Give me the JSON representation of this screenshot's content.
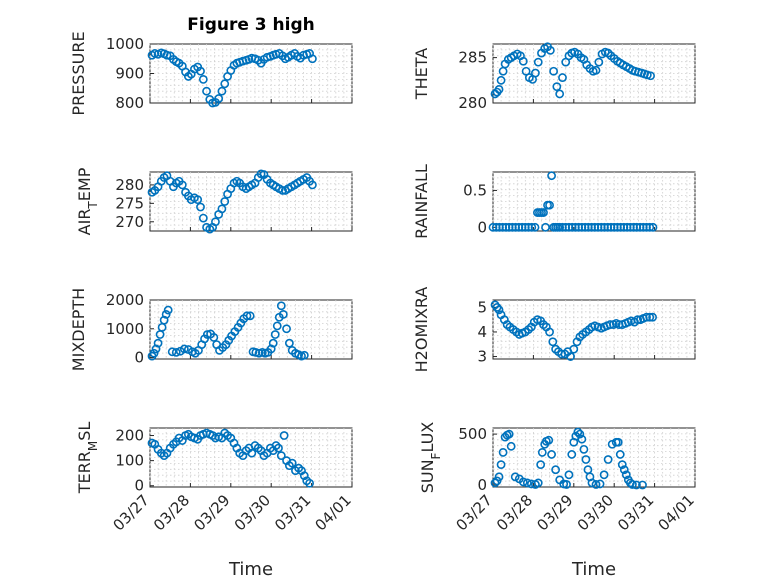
{
  "figure_title": "Figure 3 high",
  "xlabel": "Time",
  "x_tick_labels": [
    "03/27",
    "03/28",
    "03/29",
    "03/30",
    "03/31",
    "04/01"
  ],
  "colors": {
    "marker": "#0072BD",
    "axes": "#262626",
    "grid": "#cfcfcf"
  },
  "chart_data": [
    {
      "type": "scatter",
      "name": "PRESSURE",
      "ylabel": "PRESSURE",
      "ylabel_sub": "",
      "ylim": [
        800,
        1000
      ],
      "yticks": [
        800,
        900,
        1000
      ],
      "grid": true,
      "x_range": [
        "03/27",
        "04/01"
      ],
      "x": [
        0.05,
        0.12,
        0.2,
        0.28,
        0.35,
        0.42,
        0.5,
        0.58,
        0.65,
        0.72,
        0.8,
        0.88,
        0.95,
        1.02,
        1.1,
        1.18,
        1.25,
        1.32,
        1.4,
        1.48,
        1.55,
        1.62,
        1.7,
        1.78,
        1.85,
        1.92,
        2.0,
        2.08,
        2.15,
        2.22,
        2.3,
        2.38,
        2.45,
        2.52,
        2.6,
        2.68,
        2.75,
        2.82,
        2.9,
        2.98,
        3.05,
        3.12,
        3.2,
        3.28,
        3.35,
        3.42,
        3.5,
        3.58,
        3.65,
        3.72,
        3.8,
        3.88,
        3.95,
        4.02
      ],
      "y": [
        962,
        968,
        965,
        970,
        967,
        962,
        960,
        948,
        940,
        935,
        925,
        905,
        890,
        898,
        915,
        922,
        908,
        880,
        840,
        812,
        800,
        802,
        815,
        840,
        865,
        890,
        910,
        928,
        935,
        938,
        942,
        945,
        948,
        952,
        950,
        945,
        935,
        948,
        955,
        958,
        962,
        965,
        968,
        960,
        950,
        955,
        962,
        968,
        958,
        952,
        962,
        965,
        968,
        950
      ]
    },
    {
      "type": "scatter",
      "name": "THETA",
      "ylabel": "THETA",
      "ylabel_sub": "",
      "ylim": [
        280,
        286.5
      ],
      "yticks": [
        280,
        285
      ],
      "grid": true,
      "x_range": [
        "03/27",
        "04/01"
      ],
      "x": [
        0.05,
        0.1,
        0.15,
        0.2,
        0.25,
        0.3,
        0.38,
        0.45,
        0.52,
        0.6,
        0.68,
        0.75,
        0.82,
        0.9,
        0.98,
        1.05,
        1.12,
        1.2,
        1.28,
        1.35,
        1.42,
        1.5,
        1.58,
        1.65,
        1.72,
        1.8,
        1.88,
        1.95,
        2.02,
        2.1,
        2.18,
        2.25,
        2.32,
        2.4,
        2.48,
        2.55,
        2.62,
        2.7,
        2.78,
        2.85,
        2.92,
        3.0,
        3.08,
        3.15,
        3.22,
        3.3,
        3.38,
        3.45,
        3.52,
        3.6,
        3.68,
        3.75,
        3.82,
        3.9
      ],
      "y": [
        281.0,
        281.2,
        281.5,
        282.5,
        283.5,
        284.3,
        284.8,
        285.0,
        285.2,
        285.4,
        285.2,
        284.6,
        283.5,
        282.8,
        282.6,
        283.3,
        284.5,
        285.5,
        286.0,
        286.2,
        285.8,
        283.5,
        281.8,
        281.0,
        282.8,
        284.5,
        285.2,
        285.5,
        285.6,
        285.4,
        285.0,
        284.8,
        284.2,
        283.8,
        283.5,
        283.6,
        284.5,
        285.4,
        285.6,
        285.5,
        285.2,
        284.9,
        284.6,
        284.4,
        284.2,
        284.0,
        283.8,
        283.6,
        283.5,
        283.4,
        283.3,
        283.2,
        283.1,
        283.0
      ]
    },
    {
      "type": "scatter",
      "name": "AIR_TEMP",
      "ylabel": "AIR",
      "ylabel_sub": "T",
      "ylabel_suffix": "EMP",
      "ylim": [
        267.5,
        283.5
      ],
      "yticks": [
        270,
        275,
        280
      ],
      "grid": true,
      "x_range": [
        "03/27",
        "04/01"
      ],
      "x": [
        0.05,
        0.12,
        0.2,
        0.28,
        0.35,
        0.42,
        0.5,
        0.58,
        0.65,
        0.72,
        0.8,
        0.88,
        0.95,
        1.02,
        1.1,
        1.18,
        1.25,
        1.32,
        1.4,
        1.48,
        1.55,
        1.62,
        1.7,
        1.78,
        1.85,
        1.92,
        2.0,
        2.08,
        2.15,
        2.22,
        2.3,
        2.38,
        2.45,
        2.52,
        2.6,
        2.68,
        2.75,
        2.82,
        2.9,
        2.98,
        3.05,
        3.12,
        3.2,
        3.28,
        3.35,
        3.42,
        3.5,
        3.58,
        3.65,
        3.72,
        3.8,
        3.88,
        3.95,
        4.02
      ],
      "y": [
        278,
        278.5,
        279.5,
        281,
        282,
        282.5,
        281,
        279.5,
        280.5,
        281,
        280,
        278,
        277,
        276,
        276.5,
        276,
        274,
        271,
        268.5,
        268,
        268.5,
        270,
        272,
        273.5,
        275.5,
        277.5,
        279,
        280.5,
        281,
        280.5,
        279.5,
        279,
        279.5,
        280,
        280.5,
        282,
        283,
        282.8,
        281.5,
        280.5,
        280,
        279.5,
        279,
        278.5,
        278.5,
        279,
        279.5,
        280,
        280.5,
        281,
        281.5,
        282,
        281,
        280
      ]
    },
    {
      "type": "scatter",
      "name": "RAINFALL",
      "ylabel": "RAINFALL",
      "ylabel_sub": "",
      "ylim": [
        -0.05,
        0.75
      ],
      "yticks": [
        0,
        0.5
      ],
      "grid": true,
      "x_range": [
        "03/27",
        "04/01"
      ],
      "x": [
        0.0,
        0.08,
        0.16,
        0.24,
        0.32,
        0.4,
        0.48,
        0.56,
        0.64,
        0.72,
        0.8,
        0.88,
        0.96,
        1.04,
        1.1,
        1.15,
        1.2,
        1.25,
        1.3,
        1.35,
        1.4,
        1.45,
        1.5,
        1.55,
        1.6,
        1.65,
        1.72,
        1.8,
        1.88,
        1.96,
        2.04,
        2.12,
        2.2,
        2.28,
        2.36,
        2.44,
        2.52,
        2.6,
        2.68,
        2.76,
        2.84,
        2.92,
        3.0,
        3.08,
        3.16,
        3.24,
        3.32,
        3.4,
        3.48,
        3.56,
        3.64,
        3.72,
        3.8,
        3.88,
        3.96
      ],
      "y": [
        0,
        0,
        0,
        0,
        0,
        0,
        0,
        0,
        0,
        0,
        0,
        0,
        0,
        0,
        0.2,
        0.2,
        0.2,
        0.2,
        0,
        0.3,
        0.3,
        0.7,
        0,
        0,
        0,
        0,
        0,
        0,
        0,
        0,
        0,
        0,
        0,
        0,
        0,
        0,
        0,
        0,
        0,
        0,
        0,
        0,
        0,
        0,
        0,
        0,
        0,
        0,
        0,
        0,
        0,
        0,
        0,
        0,
        0
      ]
    },
    {
      "type": "scatter",
      "name": "MIXDEPTH",
      "ylabel": "MIXDEPTH",
      "ylabel_sub": "",
      "ylim": [
        -50,
        2000
      ],
      "yticks": [
        0,
        1000,
        2000
      ],
      "grid": true,
      "x_range": [
        "03/27",
        "04/01"
      ],
      "x": [
        0.05,
        0.1,
        0.15,
        0.2,
        0.25,
        0.3,
        0.35,
        0.4,
        0.45,
        0.55,
        0.65,
        0.75,
        0.85,
        0.95,
        1.05,
        1.12,
        1.2,
        1.28,
        1.35,
        1.42,
        1.5,
        1.58,
        1.65,
        1.72,
        1.8,
        1.88,
        1.95,
        2.02,
        2.1,
        2.18,
        2.25,
        2.32,
        2.4,
        2.48,
        2.55,
        2.62,
        2.7,
        2.78,
        2.85,
        2.92,
        3.0,
        3.05,
        3.1,
        3.15,
        3.2,
        3.25,
        3.3,
        3.38,
        3.45,
        3.52,
        3.6,
        3.68,
        3.75,
        3.82
      ],
      "y": [
        50,
        150,
        300,
        500,
        800,
        1050,
        1300,
        1500,
        1650,
        200,
        180,
        220,
        300,
        280,
        200,
        150,
        250,
        450,
        650,
        800,
        820,
        700,
        450,
        250,
        350,
        450,
        600,
        750,
        900,
        1050,
        1200,
        1350,
        1450,
        1450,
        200,
        180,
        150,
        180,
        150,
        180,
        300,
        500,
        800,
        1100,
        1400,
        1800,
        1500,
        1000,
        500,
        250,
        150,
        100,
        50,
        80
      ]
    },
    {
      "type": "scatter",
      "name": "H2OMIXRA",
      "ylabel": "H2OMIXRA",
      "ylabel_sub": "",
      "ylim": [
        2.9,
        5.3
      ],
      "yticks": [
        3,
        4,
        5
      ],
      "grid": true,
      "x_range": [
        "03/27",
        "04/01"
      ],
      "x": [
        0.05,
        0.1,
        0.15,
        0.2,
        0.28,
        0.35,
        0.42,
        0.5,
        0.58,
        0.65,
        0.72,
        0.8,
        0.88,
        0.95,
        1.02,
        1.1,
        1.18,
        1.25,
        1.32,
        1.4,
        1.48,
        1.55,
        1.62,
        1.7,
        1.78,
        1.85,
        1.92,
        2.0,
        2.08,
        2.15,
        2.22,
        2.3,
        2.38,
        2.45,
        2.52,
        2.6,
        2.68,
        2.75,
        2.82,
        2.9,
        2.98,
        3.05,
        3.12,
        3.2,
        3.28,
        3.35,
        3.42,
        3.5,
        3.58,
        3.65,
        3.72,
        3.8,
        3.88,
        3.95
      ],
      "y": [
        5.1,
        5.0,
        4.9,
        4.7,
        4.5,
        4.3,
        4.2,
        4.1,
        4.0,
        3.9,
        3.95,
        4.0,
        4.1,
        4.2,
        4.4,
        4.5,
        4.45,
        4.3,
        4.2,
        4.0,
        3.6,
        3.3,
        3.2,
        3.1,
        3.1,
        3.2,
        3.0,
        3.3,
        3.6,
        3.8,
        3.9,
        4.0,
        4.1,
        4.2,
        4.25,
        4.2,
        4.15,
        4.2,
        4.25,
        4.3,
        4.3,
        4.35,
        4.3,
        4.3,
        4.35,
        4.4,
        4.45,
        4.4,
        4.5,
        4.5,
        4.55,
        4.6,
        4.6,
        4.6
      ]
    },
    {
      "type": "scatter",
      "name": "TERR_MSL",
      "ylabel": "TERR",
      "ylabel_sub": "M",
      "ylabel_suffix": "SL",
      "ylim": [
        -5,
        230
      ],
      "yticks": [
        0,
        100,
        200
      ],
      "grid": true,
      "x_range": [
        "03/27",
        "04/01"
      ],
      "x": [
        0.05,
        0.12,
        0.2,
        0.28,
        0.35,
        0.42,
        0.5,
        0.58,
        0.65,
        0.72,
        0.8,
        0.88,
        0.95,
        1.02,
        1.1,
        1.18,
        1.25,
        1.32,
        1.4,
        1.48,
        1.55,
        1.62,
        1.7,
        1.78,
        1.85,
        1.92,
        2.0,
        2.08,
        2.15,
        2.22,
        2.3,
        2.38,
        2.45,
        2.52,
        2.6,
        2.68,
        2.75,
        2.82,
        2.9,
        2.98,
        3.05,
        3.12,
        3.18,
        3.25,
        3.32,
        3.38,
        3.45,
        3.52,
        3.6,
        3.68,
        3.75,
        3.82,
        3.88,
        3.95
      ],
      "y": [
        170,
        165,
        145,
        130,
        120,
        130,
        150,
        165,
        175,
        190,
        180,
        200,
        205,
        195,
        190,
        185,
        200,
        205,
        210,
        205,
        200,
        190,
        195,
        190,
        210,
        200,
        190,
        170,
        150,
        130,
        120,
        140,
        150,
        130,
        160,
        150,
        140,
        120,
        130,
        150,
        140,
        160,
        150,
        120,
        200,
        100,
        80,
        90,
        60,
        70,
        60,
        40,
        20,
        10
      ]
    },
    {
      "type": "scatter",
      "name": "SUN_FLUX",
      "ylabel": "SUN",
      "ylabel_sub": "F",
      "ylabel_suffix": "LUX",
      "ylim": [
        -20,
        560
      ],
      "yticks": [
        0,
        500
      ],
      "grid": true,
      "x_range": [
        "03/27",
        "04/01"
      ],
      "x": [
        0.05,
        0.1,
        0.15,
        0.2,
        0.25,
        0.3,
        0.35,
        0.4,
        0.45,
        0.55,
        0.65,
        0.75,
        0.85,
        0.95,
        1.05,
        1.12,
        1.18,
        1.22,
        1.28,
        1.32,
        1.38,
        1.45,
        1.55,
        1.65,
        1.75,
        1.82,
        1.88,
        1.95,
        2.0,
        2.05,
        2.1,
        2.15,
        2.2,
        2.25,
        2.3,
        2.35,
        2.4,
        2.45,
        2.55,
        2.65,
        2.75,
        2.85,
        2.95,
        3.05,
        3.1,
        3.15,
        3.2,
        3.25,
        3.3,
        3.35,
        3.4,
        3.45,
        3.55,
        3.7
      ],
      "y": [
        20,
        40,
        80,
        200,
        320,
        470,
        490,
        500,
        380,
        80,
        60,
        30,
        20,
        10,
        5,
        20,
        200,
        320,
        400,
        430,
        440,
        300,
        150,
        50,
        10,
        5,
        100,
        300,
        420,
        480,
        520,
        500,
        450,
        350,
        250,
        150,
        80,
        20,
        5,
        10,
        100,
        250,
        400,
        420,
        420,
        300,
        200,
        150,
        100,
        50,
        20,
        5,
        0,
        0
      ]
    }
  ]
}
